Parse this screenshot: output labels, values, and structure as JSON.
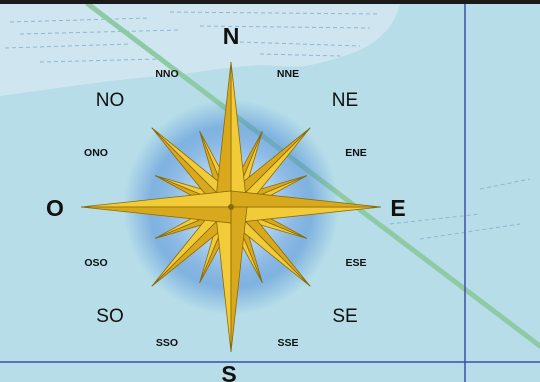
{
  "map": {
    "compass": {
      "cardinal": {
        "north": "N",
        "south": "S",
        "east": "E",
        "west": "O"
      },
      "intercardinal": {
        "northeast": "NE",
        "northwest": "NO",
        "southeast": "SE",
        "southwest": "SO"
      },
      "secondary": {
        "nne": "NNE",
        "nno": "NNO",
        "ene": "ENE",
        "ono": "ONO",
        "ese": "ESE",
        "oso": "OSO",
        "sse": "SSE",
        "sso": "SSO"
      }
    },
    "colors": {
      "water": "#b6dde8",
      "shoal": "#cfe6f0",
      "grid_line": "#3b4fa8",
      "track": "#8fcaa6",
      "rose_gold": "#f2cb38",
      "rose_dark": "#8a6a08",
      "glow": "#3f7fd6"
    }
  }
}
